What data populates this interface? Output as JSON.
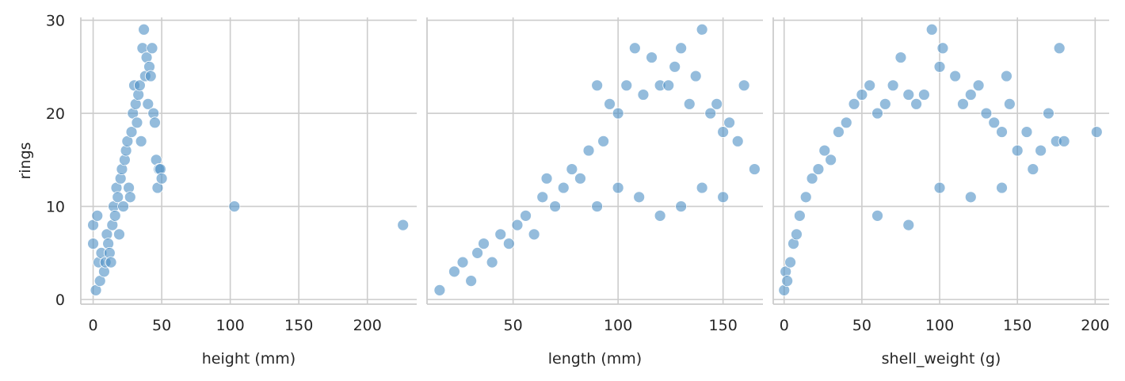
{
  "chart_data": {
    "type": "scatter",
    "ylabel": "rings",
    "yticks": [
      0,
      10,
      20,
      30
    ],
    "ylim": [
      -0.5,
      30.3
    ],
    "grid": true,
    "marker_color": "#4c8fc4",
    "marker_edge_color": "#ffffff",
    "grid_color": "#cccccc",
    "panels": [
      {
        "xlabel": "height (mm)",
        "xlim": [
          -9,
          236
        ],
        "xticks": [
          0,
          50,
          100,
          150,
          200
        ],
        "points": [
          [
            0,
            8
          ],
          [
            0,
            6
          ],
          [
            3,
            9
          ],
          [
            2,
            1
          ],
          [
            4,
            4
          ],
          [
            5,
            2
          ],
          [
            6,
            5
          ],
          [
            8,
            3
          ],
          [
            9,
            4
          ],
          [
            10,
            7
          ],
          [
            11,
            6
          ],
          [
            12,
            5
          ],
          [
            13,
            4
          ],
          [
            14,
            8
          ],
          [
            15,
            10
          ],
          [
            16,
            9
          ],
          [
            17,
            12
          ],
          [
            18,
            11
          ],
          [
            19,
            7
          ],
          [
            20,
            13
          ],
          [
            21,
            14
          ],
          [
            22,
            10
          ],
          [
            23,
            15
          ],
          [
            24,
            16
          ],
          [
            25,
            17
          ],
          [
            26,
            12
          ],
          [
            27,
            11
          ],
          [
            28,
            18
          ],
          [
            29,
            20
          ],
          [
            30,
            23
          ],
          [
            31,
            21
          ],
          [
            32,
            19
          ],
          [
            33,
            22
          ],
          [
            34,
            23
          ],
          [
            35,
            17
          ],
          [
            36,
            27
          ],
          [
            37,
            29
          ],
          [
            38,
            24
          ],
          [
            39,
            26
          ],
          [
            40,
            21
          ],
          [
            41,
            25
          ],
          [
            42,
            24
          ],
          [
            43,
            27
          ],
          [
            44,
            20
          ],
          [
            45,
            19
          ],
          [
            46,
            15
          ],
          [
            47,
            12
          ],
          [
            48,
            14
          ],
          [
            49,
            14
          ],
          [
            50,
            13
          ],
          [
            103,
            10
          ],
          [
            226,
            8
          ]
        ]
      },
      {
        "xlabel": "length (mm)",
        "xlim": [
          9,
          169
        ],
        "xticks": [
          50,
          100,
          150
        ],
        "points": [
          [
            15,
            1
          ],
          [
            22,
            3
          ],
          [
            26,
            4
          ],
          [
            30,
            2
          ],
          [
            33,
            5
          ],
          [
            36,
            6
          ],
          [
            40,
            4
          ],
          [
            44,
            7
          ],
          [
            48,
            6
          ],
          [
            52,
            8
          ],
          [
            56,
            9
          ],
          [
            60,
            7
          ],
          [
            64,
            11
          ],
          [
            66,
            13
          ],
          [
            70,
            10
          ],
          [
            74,
            12
          ],
          [
            78,
            14
          ],
          [
            82,
            13
          ],
          [
            86,
            16
          ],
          [
            90,
            23
          ],
          [
            93,
            17
          ],
          [
            96,
            21
          ],
          [
            100,
            20
          ],
          [
            104,
            23
          ],
          [
            108,
            27
          ],
          [
            112,
            22
          ],
          [
            116,
            26
          ],
          [
            120,
            23
          ],
          [
            124,
            23
          ],
          [
            127,
            25
          ],
          [
            130,
            27
          ],
          [
            134,
            21
          ],
          [
            137,
            24
          ],
          [
            140,
            29
          ],
          [
            144,
            20
          ],
          [
            147,
            21
          ],
          [
            150,
            18
          ],
          [
            153,
            19
          ],
          [
            157,
            17
          ],
          [
            160,
            23
          ],
          [
            165,
            14
          ],
          [
            90,
            10
          ],
          [
            100,
            12
          ],
          [
            110,
            11
          ],
          [
            120,
            9
          ],
          [
            130,
            10
          ],
          [
            140,
            12
          ],
          [
            150,
            11
          ]
        ]
      },
      {
        "xlabel": "shell_weight (g)",
        "xlim": [
          -7,
          209
        ],
        "xticks": [
          0,
          50,
          100,
          150,
          200
        ],
        "points": [
          [
            0,
            1
          ],
          [
            1,
            3
          ],
          [
            2,
            2
          ],
          [
            4,
            4
          ],
          [
            6,
            6
          ],
          [
            8,
            7
          ],
          [
            10,
            9
          ],
          [
            14,
            11
          ],
          [
            18,
            13
          ],
          [
            22,
            14
          ],
          [
            26,
            16
          ],
          [
            30,
            15
          ],
          [
            35,
            18
          ],
          [
            40,
            19
          ],
          [
            45,
            21
          ],
          [
            50,
            22
          ],
          [
            55,
            23
          ],
          [
            60,
            20
          ],
          [
            65,
            21
          ],
          [
            70,
            23
          ],
          [
            75,
            26
          ],
          [
            80,
            22
          ],
          [
            85,
            21
          ],
          [
            90,
            22
          ],
          [
            95,
            29
          ],
          [
            100,
            25
          ],
          [
            102,
            27
          ],
          [
            110,
            24
          ],
          [
            115,
            21
          ],
          [
            120,
            22
          ],
          [
            125,
            23
          ],
          [
            130,
            20
          ],
          [
            135,
            19
          ],
          [
            140,
            18
          ],
          [
            143,
            24
          ],
          [
            145,
            21
          ],
          [
            150,
            16
          ],
          [
            156,
            18
          ],
          [
            160,
            14
          ],
          [
            165,
            16
          ],
          [
            170,
            20
          ],
          [
            175,
            17
          ],
          [
            177,
            27
          ],
          [
            180,
            17
          ],
          [
            201,
            18
          ],
          [
            60,
            9
          ],
          [
            80,
            8
          ],
          [
            100,
            12
          ],
          [
            120,
            11
          ],
          [
            140,
            12
          ]
        ]
      }
    ]
  }
}
